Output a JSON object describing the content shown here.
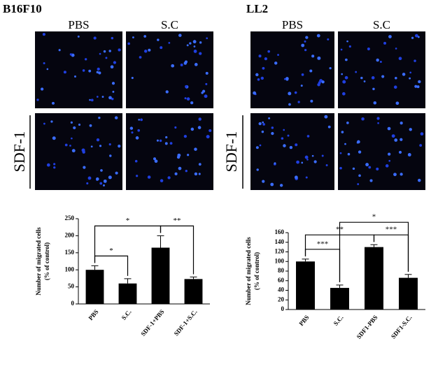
{
  "panels": [
    {
      "label": "B16F10",
      "columns": [
        "PBS",
        "S.C"
      ],
      "row_label": "SDF-1"
    },
    {
      "label": "LL2",
      "columns": [
        "PBS",
        "S.C"
      ],
      "row_label": "SDF-1"
    }
  ],
  "chart_data": [
    {
      "type": "bar",
      "y_label": "Number of migrated cells",
      "y_label_2": "(% of control)",
      "categories": [
        "PBS",
        "S.C.",
        "SDF-1+PBS",
        "SDF-1+S.C."
      ],
      "values": [
        100,
        60,
        165,
        73
      ],
      "errors": [
        12,
        14,
        35,
        6
      ],
      "color": "#000000",
      "ylim": [
        0,
        250
      ],
      "yticks": [
        0,
        50,
        100,
        150,
        200,
        250
      ],
      "annotations": [
        {
          "text": "*",
          "between": [
            "PBS",
            "S.C."
          ]
        },
        {
          "text": "**",
          "between": [
            "SDF-1+PBS",
            "SDF-1+S.C."
          ]
        },
        {
          "text": "*",
          "between": [
            "PBS",
            "SDF-1+PBS"
          ]
        }
      ]
    },
    {
      "type": "bar",
      "y_label": "Number of migrated cells",
      "y_label_2": "(% of control)",
      "categories": [
        "PBS",
        "S.C.",
        "SDF1-PBS",
        "SDF1-S.C."
      ],
      "values": [
        100,
        45,
        130,
        66
      ],
      "errors": [
        5,
        6,
        5,
        7
      ],
      "color": "#000000",
      "ylim": [
        0,
        160
      ],
      "yticks": [
        0,
        20,
        40,
        60,
        80,
        100,
        120,
        140,
        160
      ],
      "annotations": [
        {
          "text": "***",
          "between": [
            "PBS",
            "S.C."
          ]
        },
        {
          "text": "***",
          "between": [
            "SDF1-PBS",
            "SDF1-S.C."
          ]
        },
        {
          "text": "**",
          "between": [
            "PBS",
            "SDF1-PBS"
          ]
        },
        {
          "text": "*",
          "between": [
            "S.C.",
            "SDF1-S.C."
          ]
        }
      ]
    }
  ]
}
